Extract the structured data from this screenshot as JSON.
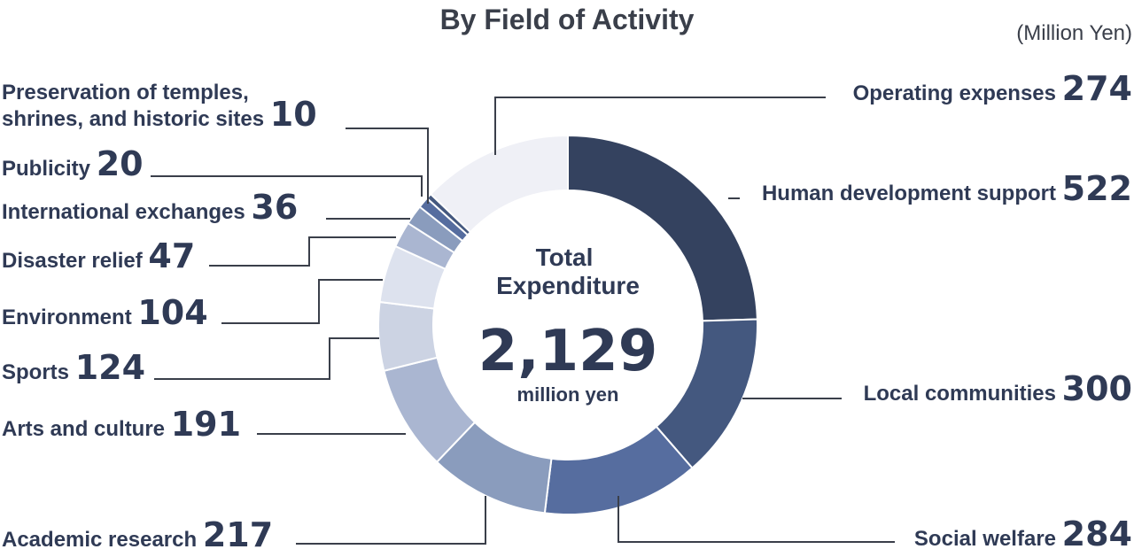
{
  "chart_data": {
    "type": "pie",
    "title": "By Field of Activity",
    "unit_note": "(Million Yen)",
    "center": {
      "line1": "Total",
      "line2": "Expenditure",
      "total": "2,129",
      "unit": "million yen"
    },
    "slices": [
      {
        "label": "Human development support",
        "value": 522,
        "color": "#34425f"
      },
      {
        "label": "Local communities",
        "value": 300,
        "color": "#44587f"
      },
      {
        "label": "Social welfare",
        "value": 284,
        "color": "#566d9f"
      },
      {
        "label": "Academic research",
        "value": 217,
        "color": "#8a9cbd"
      },
      {
        "label": "Arts and culture",
        "value": 191,
        "color": "#aab6d1"
      },
      {
        "label": "Sports",
        "value": 124,
        "color": "#ccd3e3"
      },
      {
        "label": "Environment",
        "value": 104,
        "color": "#dde2ee"
      },
      {
        "label": "Disaster relief",
        "value": 47,
        "color": "#aab6d1"
      },
      {
        "label": "International exchanges",
        "value": 36,
        "color": "#8a9cbd"
      },
      {
        "label": "Publicity",
        "value": 20,
        "color": "#566d9f"
      },
      {
        "label": "Preservation of temples, shrines, and historic sites",
        "label_lines": [
          "Preservation of temples,",
          "shrines, and historic sites"
        ],
        "value": 10,
        "color": "#44587f"
      },
      {
        "label": "Operating expenses",
        "value": 274,
        "color": "#eff0f6"
      }
    ]
  }
}
